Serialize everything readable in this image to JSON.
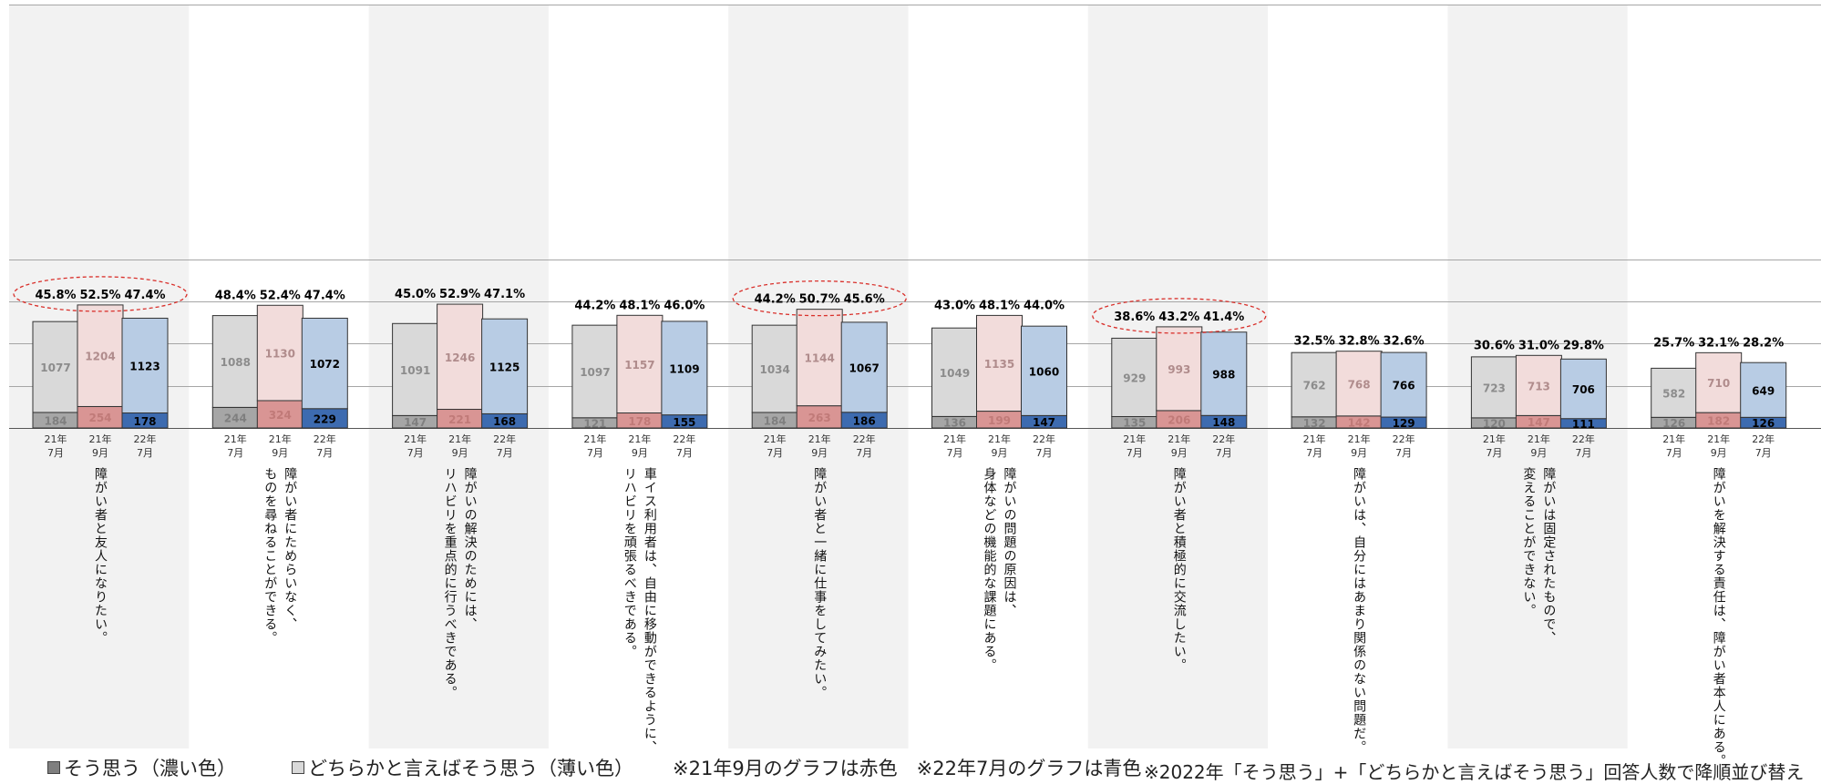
{
  "chart_data": {
    "type": "bar",
    "stacked": true,
    "grid": true,
    "x_sublabels": [
      "21年\n7月",
      "21年\n9月",
      "22年\n7月"
    ],
    "categories": [
      "障がい者と友人になりたい。",
      "障がい者にためらいなく、\nものを尋ねることができる。",
      "障がいの解決のためには、\nリハビリを重点的に行うべきである。",
      "車イス利用者は、自由に移動ができるように、\nリハビリを頑張るべきである。",
      "障がい者と一緒に仕事をしてみたい。",
      "障がいの問題の原因は、\n身体などの機能的な課題にある。",
      "障がい者と積極的に交流したい。",
      "障がいは、自分にはあまり関係のない問題だ。",
      "障がいは固定されたもので、\n変えることができない。",
      "障がいを解決する責任は、障がい者本人にある。"
    ],
    "series": [
      {
        "name": "そう思う（濃い色）",
        "periods": {
          "21年7月": [
            184,
            244,
            147,
            121,
            184,
            136,
            135,
            132,
            120,
            126
          ],
          "21年9月": [
            254,
            324,
            221,
            178,
            263,
            199,
            206,
            142,
            147,
            182
          ],
          "22年7月": [
            178,
            229,
            168,
            155,
            186,
            147,
            148,
            129,
            111,
            126
          ]
        }
      },
      {
        "name": "どちらかと言えばそう思う（薄い色）",
        "periods": {
          "21年7月": [
            1077,
            1088,
            1091,
            1097,
            1034,
            1049,
            929,
            762,
            723,
            582
          ],
          "21年9月": [
            1204,
            1130,
            1246,
            1157,
            1144,
            1135,
            993,
            768,
            713,
            710
          ],
          "22年7月": [
            1123,
            1072,
            1125,
            1109,
            1067,
            1060,
            988,
            766,
            706,
            649
          ]
        }
      }
    ],
    "percent_labels": {
      "21年7月": [
        "45.8%",
        "48.4%",
        "45.0%",
        "44.2%",
        "44.2%",
        "43.0%",
        "38.6%",
        "32.5%",
        "30.6%",
        "25.7%"
      ],
      "21年9月": [
        "52.5%",
        "52.4%",
        "52.9%",
        "48.1%",
        "50.7%",
        "48.1%",
        "43.2%",
        "32.8%",
        "31.0%",
        "32.1%"
      ],
      "22年7月": [
        "47.4%",
        "47.4%",
        "47.1%",
        "46.0%",
        "45.6%",
        "44.0%",
        "41.4%",
        "32.6%",
        "29.8%",
        "28.2%"
      ]
    },
    "highlighted_groups": [
      0,
      4,
      6
    ],
    "ylim": [
      0,
      2500
    ],
    "colors": {
      "21年7月": {
        "dark": "#a6a6a6",
        "light": "#d9d9d9",
        "dark_text": "#7f7f7f",
        "light_text": "#8c8c8c"
      },
      "21年9月": {
        "dark": "#d99594",
        "light": "#f2dcdb",
        "dark_text": "#c07a78",
        "light_text": "#b08c8c"
      },
      "22年7月": {
        "dark": "#3d6bb0",
        "light": "#b8cce4",
        "dark_text": "#000000",
        "light_text": "#000000"
      },
      "band": "#f2f2f2",
      "highlight": "#d9302b"
    }
  },
  "legend": {
    "item1": "そう思う（濃い色）",
    "item2": "どちらかと言えばそう思う（薄い色）",
    "note1": "※21年9月のグラフは赤色　※22年7月のグラフは青色",
    "note2": "※2022年「そう思う」+「どちらかと言えばそう思う」回答人数で降順並び替え"
  }
}
